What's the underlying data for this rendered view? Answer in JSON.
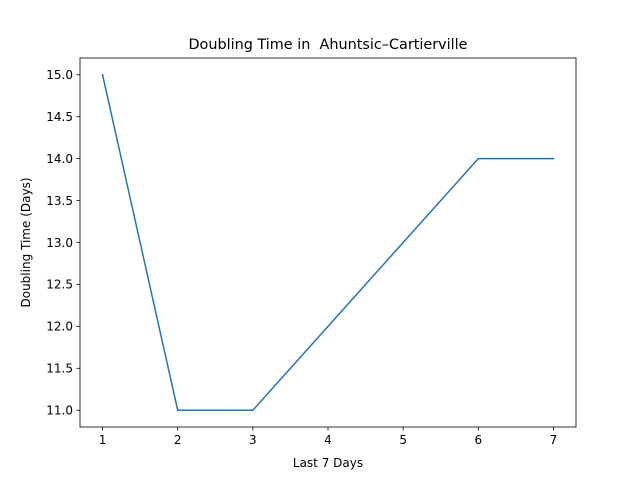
{
  "chart_data": {
    "type": "line",
    "title": "Doubling Time in  Ahuntsic–Cartierville",
    "xlabel": "Last 7 Days",
    "ylabel": "Doubling Time (Days)",
    "x": [
      1,
      2,
      3,
      4,
      5,
      6,
      7
    ],
    "series": [
      {
        "values": [
          15,
          11,
          11,
          12,
          13,
          14,
          14
        ],
        "color": "#1f77b4"
      }
    ],
    "xlim": [
      0.7,
      7.3
    ],
    "ylim": [
      10.8,
      15.2
    ],
    "xticks": [
      "1",
      "2",
      "3",
      "4",
      "5",
      "6",
      "7"
    ],
    "yticks": [
      "11.0",
      "11.5",
      "12.0",
      "12.5",
      "13.0",
      "13.5",
      "14.0",
      "14.5",
      "15.0"
    ],
    "grid": false,
    "legend": "none"
  }
}
